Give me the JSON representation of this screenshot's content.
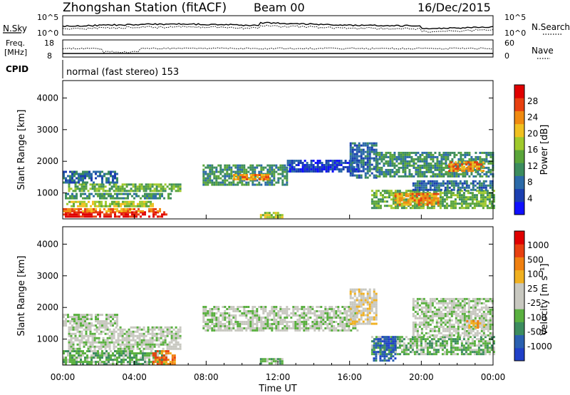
{
  "header": {
    "station": "Zhongshan Station (fitACF)",
    "beam": "Beam 00",
    "date": "16/Dec/2015"
  },
  "strip_labels": {
    "nsky": "N.Sky",
    "nsky_top": "10^5",
    "nsky_bottom": "10^0",
    "nsearch": "N.Search",
    "nsearch_top": "10^5",
    "nsearch_bottom": "10^0",
    "freq_line1": "Freq.",
    "freq_line2": "[MHz]",
    "freq_top": "18",
    "freq_bottom": "8",
    "nave": "Nave",
    "nave_top": "60",
    "nave_bottom": "0",
    "cpid": "CPID",
    "mode": "normal (fast stereo) 153"
  },
  "colors": {
    "power_scale": [
      "#1010ff",
      "#1b3fb0",
      "#2b6aa8",
      "#3c8c5e",
      "#5aa53a",
      "#9fc92c",
      "#f0c020",
      "#f08a10",
      "#e84010",
      "#e00000"
    ],
    "velocity_scale": [
      "#2040c8",
      "#2a60b0",
      "#3c8c5e",
      "#5ab040",
      "#c8c8c0",
      "#c8c8c0",
      "#f0b020",
      "#f08010",
      "#e84010",
      "#e00000"
    ]
  },
  "chart_data": [
    {
      "type": "heatmap",
      "name": "power",
      "xlabel": "",
      "ylabel": "Slant Range [km]",
      "ylim": [
        180,
        4550
      ],
      "yticks": [
        "1000",
        "2000",
        "3000",
        "4000"
      ],
      "colorbar_label": "Power [dB]",
      "colorbar_ticks": [
        "4",
        "8",
        "12",
        "16",
        "20",
        "24",
        "28"
      ],
      "colorbar_range": [
        0,
        32
      ],
      "bands": [
        {
          "x0": 0.0,
          "x1": 5.8,
          "y0": 220,
          "y1": 420,
          "level": 9
        },
        {
          "x0": 0.0,
          "x1": 5.5,
          "y0": 420,
          "y1": 520,
          "level": 7
        },
        {
          "x0": 0.2,
          "x1": 5.0,
          "y0": 600,
          "y1": 750,
          "level": 5
        },
        {
          "x0": 0.0,
          "x1": 6.0,
          "y0": 800,
          "y1": 1000,
          "level": 3
        },
        {
          "x0": 0.3,
          "x1": 6.5,
          "y0": 1050,
          "y1": 1300,
          "level": 4
        },
        {
          "x0": 0.0,
          "x1": 3.0,
          "y0": 1350,
          "y1": 1700,
          "level": 2
        },
        {
          "x0": 7.8,
          "x1": 12.5,
          "y0": 1250,
          "y1": 1900,
          "level": 3
        },
        {
          "x0": 9.5,
          "x1": 11.5,
          "y0": 1400,
          "y1": 1600,
          "level": 7
        },
        {
          "x0": 11.0,
          "x1": 12.3,
          "y0": 250,
          "y1": 400,
          "level": 5
        },
        {
          "x0": 12.5,
          "x1": 16.5,
          "y0": 1700,
          "y1": 2050,
          "level": 1
        },
        {
          "x0": 16.0,
          "x1": 17.5,
          "y0": 1500,
          "y1": 2600,
          "level": 2
        },
        {
          "x0": 17.2,
          "x1": 24.0,
          "y0": 500,
          "y1": 1100,
          "level": 4
        },
        {
          "x0": 18.5,
          "x1": 21.0,
          "y0": 600,
          "y1": 1000,
          "level": 7
        },
        {
          "x0": 19.5,
          "x1": 24.0,
          "y0": 1100,
          "y1": 1400,
          "level": 2
        },
        {
          "x0": 17.5,
          "x1": 24.0,
          "y0": 1500,
          "y1": 2300,
          "level": 3
        },
        {
          "x0": 21.5,
          "x1": 23.5,
          "y0": 1700,
          "y1": 2000,
          "level": 7
        }
      ]
    },
    {
      "type": "heatmap",
      "name": "velocity",
      "xlabel": "Time UT",
      "ylabel": "Slant Range [km]",
      "ylim": [
        180,
        4550
      ],
      "yticks": [
        "1000",
        "2000",
        "3000",
        "4000"
      ],
      "xticks": [
        "00:00",
        "04:00",
        "08:00",
        "12:00",
        "16:00",
        "20:00",
        "00:00"
      ],
      "xlim": [
        0,
        24
      ],
      "colorbar_label": "Velocity [m s⁻¹]",
      "colorbar_ticks": [
        "1000",
        "500",
        "100",
        "25",
        "-25",
        "-100",
        "-500",
        "-1000"
      ],
      "bands": [
        {
          "x0": 0.0,
          "x1": 5.8,
          "y0": 220,
          "y1": 650,
          "level": 3
        },
        {
          "x0": 0.3,
          "x1": 6.5,
          "y0": 700,
          "y1": 1400,
          "level": 4
        },
        {
          "x0": 0.0,
          "x1": 3.0,
          "y0": 1400,
          "y1": 1800,
          "level": 4
        },
        {
          "x0": 5.0,
          "x1": 6.2,
          "y0": 220,
          "y1": 650,
          "level": 7
        },
        {
          "x0": 7.8,
          "x1": 16.5,
          "y0": 1250,
          "y1": 2050,
          "level": 4
        },
        {
          "x0": 11.0,
          "x1": 12.3,
          "y0": 250,
          "y1": 400,
          "level": 3
        },
        {
          "x0": 16.0,
          "x1": 17.5,
          "y0": 1500,
          "y1": 2600,
          "level": 5
        },
        {
          "x0": 17.2,
          "x1": 24.0,
          "y0": 500,
          "y1": 1100,
          "level": 3
        },
        {
          "x0": 17.3,
          "x1": 18.5,
          "y0": 300,
          "y1": 1100,
          "level": 1
        },
        {
          "x0": 19.5,
          "x1": 24.0,
          "y0": 1100,
          "y1": 2300,
          "level": 4
        },
        {
          "x0": 22.5,
          "x1": 23.5,
          "y0": 1350,
          "y1": 1600,
          "level": 6
        }
      ]
    }
  ]
}
